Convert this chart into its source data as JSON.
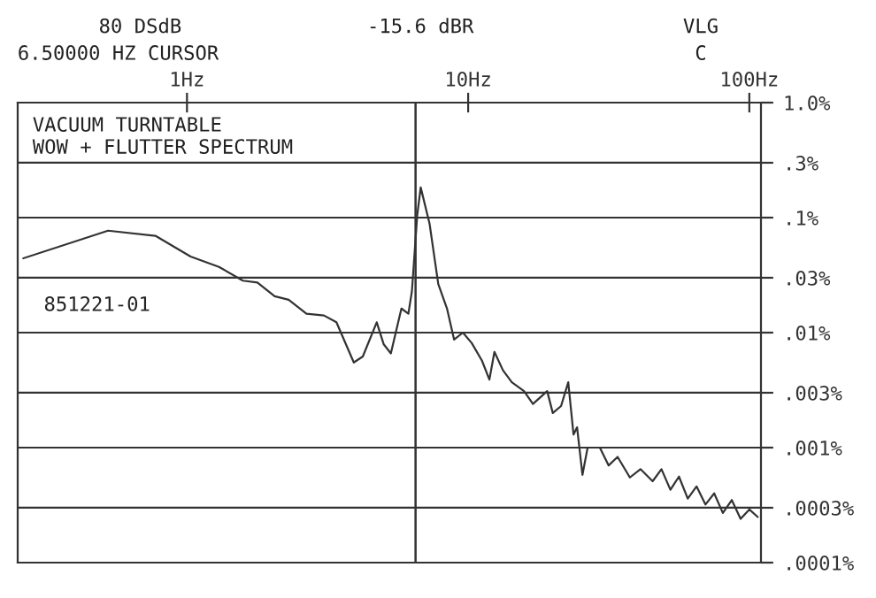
{
  "chart_data": {
    "type": "line",
    "title": "VACUUM TURNTABLE\nWOW + FLUTTER SPECTRUM",
    "annotations": [
      "80 DSdB",
      "-15.6 dBR",
      "VLG",
      "6.50000 HZ CURSOR",
      "C",
      "851221-01"
    ],
    "x": [
      0.262,
      0.524,
      0.772,
      1.03,
      1.3,
      1.58,
      1.78,
      2.05,
      2.3,
      2.66,
      3.07,
      3.4,
      3.92,
      4.22,
      4.73,
      5.01,
      5.31,
      5.79,
      6.13,
      6.31,
      6.59,
      6.78,
      7.29,
      7.83,
      8.41,
      8.91,
      9.58,
      10.3,
      11.2,
      11.9,
      12.4,
      13.3,
      14.3,
      15.8,
      17.0,
      19.1,
      20.0,
      21.4,
      22.7,
      23.7,
      24.4,
      25.5,
      26.6,
      29.4,
      31.6,
      34.0,
      37.6,
      41.0,
      45.3,
      48.7,
      52.4,
      56.2,
      60.4,
      64.9,
      69.8,
      75.0,
      80.5,
      86.6,
      93.1,
      100,
      107
    ],
    "series": [
      {
        "color": "#333333",
        "values": [
          0.0443,
          0.077,
          0.0695,
          0.0459,
          0.0373,
          0.0283,
          0.0273,
          0.0207,
          0.0193,
          0.0146,
          0.0141,
          0.0123,
          0.0055,
          0.0062,
          0.0123,
          0.0079,
          0.0066,
          0.0162,
          0.0146,
          0.023,
          0.105,
          0.183,
          0.0886,
          0.0264,
          0.0162,
          0.0087,
          0.01,
          0.0081,
          0.0057,
          0.0039,
          0.0068,
          0.0047,
          0.0037,
          0.0031,
          0.0024,
          0.0031,
          0.002,
          0.0023,
          0.0037,
          0.0013,
          0.0015,
          0.00058,
          0.001,
          0.001,
          0.0007,
          0.00083,
          0.00055,
          0.00065,
          0.00051,
          0.00065,
          0.00043,
          0.00056,
          0.00036,
          0.00046,
          0.00032,
          0.0004,
          0.00027,
          0.00035,
          0.00024,
          0.00029,
          0.00025
        ]
      }
    ],
    "log": "xy",
    "xlim": [
      0.25,
      110
    ],
    "xticks": [
      {
        "value": 1,
        "label": "1Hz"
      },
      {
        "value": 10,
        "label": "10Hz"
      },
      {
        "value": 100,
        "label": "100Hz"
      }
    ],
    "ylim": [
      0.0001,
      1.0
    ],
    "yticks": [
      {
        "value": 1.0,
        "label": "1.0%"
      },
      {
        "value": 0.3,
        "label": ".3%"
      },
      {
        "value": 0.1,
        "label": ".1%"
      },
      {
        "value": 0.03,
        "label": ".03%"
      },
      {
        "value": 0.01,
        "label": ".01%"
      },
      {
        "value": 0.003,
        "label": ".003%"
      },
      {
        "value": 0.001,
        "label": ".001%"
      },
      {
        "value": 0.0003,
        "label": ".0003%"
      },
      {
        "value": 0.0001,
        "label": ".0001%"
      }
    ],
    "grid": "y",
    "ref_lines": [
      {
        "axis": "x",
        "value": 6.5,
        "color": "#333333"
      }
    ]
  }
}
